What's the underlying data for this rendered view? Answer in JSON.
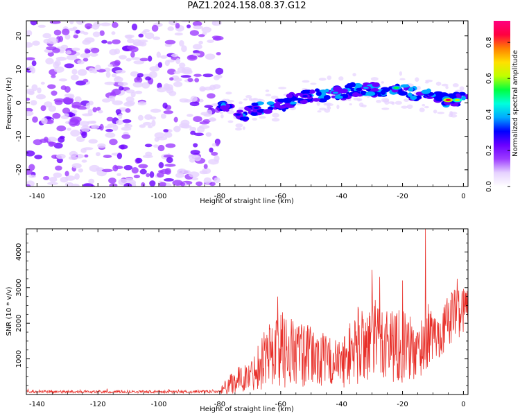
{
  "title": "PAZ1.2024.158.08.37.G12",
  "colors": {
    "snr_line": "#e8302a",
    "colormap": [
      "#ffffff",
      "#e6d2ff",
      "#9d3cff",
      "#6a00ff",
      "#0000ff",
      "#00aaff",
      "#00ffdd",
      "#00ff40",
      "#c0ff00",
      "#ffe000",
      "#ff8000",
      "#ff0040",
      "#ff0080"
    ]
  },
  "chart_data": [
    {
      "type": "heatmap",
      "id": "spectrogram",
      "xlabel": "Height of straight line (km)",
      "ylabel": "Frequency (Hz)",
      "xlim": [
        -143.5,
        1.5
      ],
      "ylim": [
        -25,
        24.5
      ],
      "xticks": [
        -140,
        -120,
        -100,
        -80,
        -60,
        -40,
        -20,
        0
      ],
      "yticks": [
        -20,
        -10,
        0,
        10,
        20
      ],
      "noise_region_x": [
        -143.5,
        -80
      ],
      "ridge": {
        "x": [
          -80,
          -76,
          -72,
          -70,
          -66,
          -62,
          -58,
          -55,
          -50,
          -45,
          -40,
          -35,
          -30,
          -25,
          -22,
          -18,
          -12,
          -8,
          -5,
          -2,
          1.5
        ],
        "y": [
          -0.5,
          -2,
          -4,
          -2,
          -1.5,
          -1,
          0,
          1.5,
          2,
          2.5,
          3,
          4,
          4,
          3,
          5,
          3,
          2.5,
          1.5,
          0.5,
          1,
          1
        ]
      },
      "peak_patches": [
        {
          "x": -5,
          "y": 0.8,
          "amplitude": 0.95
        },
        {
          "x": -2,
          "y": 0.8,
          "amplitude": 0.7
        },
        {
          "x": -22,
          "y": 4.5,
          "amplitude": 0.55
        },
        {
          "x": -32,
          "y": 4.5,
          "amplitude": 0.4
        },
        {
          "x": -42,
          "y": 3,
          "amplitude": 0.4
        },
        {
          "x": -52,
          "y": 2,
          "amplitude": 0.35
        },
        {
          "x": -68,
          "y": -1.5,
          "amplitude": 0.35
        },
        {
          "x": -74,
          "y": -3.5,
          "amplitude": 0.3
        }
      ]
    },
    {
      "type": "colorbar",
      "id": "amplitude-colorbar",
      "label": "Normalized spectral amplitude",
      "range": [
        0,
        0.92
      ],
      "ticks": [
        0.0,
        0.2,
        0.4,
        0.6,
        0.8
      ]
    },
    {
      "type": "line",
      "id": "snr",
      "xlabel": "Height of straight line (km)",
      "ylabel": "SNR (10 * v/v)",
      "xlim": [
        -143.5,
        1.5
      ],
      "ylim": [
        0,
        4650
      ],
      "xticks": [
        -140,
        -120,
        -100,
        -80,
        -60,
        -40,
        -20,
        0
      ],
      "yticks": [
        1000,
        2000,
        3000,
        4000
      ],
      "envelope": [
        {
          "x": -143.5,
          "low": 0,
          "high": 160
        },
        {
          "x": -80,
          "low": 0,
          "high": 170
        },
        {
          "x": -76,
          "low": 0,
          "high": 700
        },
        {
          "x": -70,
          "low": 100,
          "high": 900
        },
        {
          "x": -65,
          "low": 150,
          "high": 2000
        },
        {
          "x": -60,
          "low": 150,
          "high": 2400
        },
        {
          "x": -50,
          "low": 150,
          "high": 1900
        },
        {
          "x": -40,
          "low": 200,
          "high": 1500
        },
        {
          "x": -35,
          "low": 200,
          "high": 2500
        },
        {
          "x": -28,
          "low": 300,
          "high": 2700
        },
        {
          "x": -20,
          "low": 300,
          "high": 2400
        },
        {
          "x": -15,
          "low": 300,
          "high": 2000
        },
        {
          "x": -12,
          "low": 700,
          "high": 2600
        },
        {
          "x": -8,
          "low": 1000,
          "high": 2200
        },
        {
          "x": -4,
          "low": 1400,
          "high": 3000
        },
        {
          "x": 1.5,
          "low": 1800,
          "high": 3100
        }
      ],
      "peaks": [
        {
          "x": -61,
          "y": 2750
        },
        {
          "x": -30,
          "y": 3500
        },
        {
          "x": -27.5,
          "y": 3300
        },
        {
          "x": -20,
          "y": 3200
        },
        {
          "x": -12.5,
          "y": 4650
        },
        {
          "x": -2,
          "y": 3250
        }
      ]
    }
  ]
}
